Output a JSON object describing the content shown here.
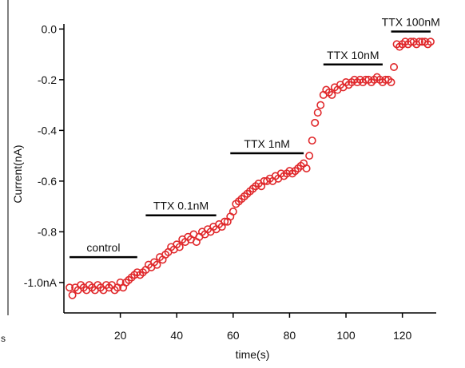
{
  "chart_data": {
    "type": "scatter",
    "title": "",
    "xlabel": "time(s)",
    "ylabel": "Current(nA)",
    "xlim": [
      0,
      132
    ],
    "ylim": [
      -1.12,
      0.02
    ],
    "x_ticks": [
      20,
      40,
      60,
      80,
      100,
      120
    ],
    "y_ticks": [
      {
        "value": 0.0,
        "label": "0.0"
      },
      {
        "value": -0.2,
        "label": "-0.2"
      },
      {
        "value": -0.4,
        "label": "-0.4"
      },
      {
        "value": -0.6,
        "label": "-0.6"
      },
      {
        "value": -0.8,
        "label": "-0.8"
      },
      {
        "value": -1.0,
        "label": "-1.0nA"
      }
    ],
    "grid": false,
    "marker_color": "#e0282b",
    "annotations": [
      {
        "label": "control",
        "x_start": 2,
        "x_end": 26,
        "y": -0.9
      },
      {
        "label": "TTX 0.1nM",
        "x_start": 29,
        "x_end": 54,
        "y": -0.735
      },
      {
        "label": "TTX 1nM",
        "x_start": 59,
        "x_end": 85,
        "y": -0.49
      },
      {
        "label": "TTX 10nM",
        "x_start": 92,
        "x_end": 113,
        "y": -0.14
      },
      {
        "label": "TTX 100nM",
        "x_start": 116,
        "x_end": 130,
        "y": -0.01
      }
    ],
    "stray_text": "s",
    "series": [
      {
        "x": [
          2,
          3,
          4,
          5,
          6,
          7,
          8,
          9,
          10,
          11,
          12,
          13,
          14,
          15,
          16,
          17,
          18,
          19,
          20,
          21,
          22,
          23,
          24,
          25,
          26,
          27,
          28,
          29,
          30,
          31,
          32,
          33,
          34,
          35,
          36,
          37,
          38,
          39,
          40,
          41,
          42,
          43,
          44,
          45,
          46,
          47,
          48,
          49,
          50,
          51,
          52,
          53,
          54,
          55,
          56,
          57,
          58,
          59,
          60,
          61,
          62,
          63,
          64,
          65,
          66,
          67,
          68,
          69,
          70,
          71,
          72,
          73,
          74,
          75,
          76,
          77,
          78,
          79,
          80,
          81,
          82,
          83,
          84,
          85,
          86,
          87,
          88,
          89,
          90,
          91,
          92,
          93,
          94,
          95,
          96,
          97,
          98,
          99,
          100,
          101,
          102,
          103,
          104,
          105,
          106,
          107,
          108,
          109,
          110,
          111,
          112,
          113,
          114,
          115,
          116,
          117,
          118,
          119,
          120,
          121,
          122,
          123,
          124,
          125,
          126,
          127,
          128,
          129,
          130
        ],
        "y": [
          -1.02,
          -1.05,
          -1.02,
          -1.03,
          -1.01,
          -1.02,
          -1.03,
          -1.01,
          -1.02,
          -1.03,
          -1.01,
          -1.02,
          -1.03,
          -1.01,
          -1.02,
          -1.01,
          -1.03,
          -1.02,
          -1.0,
          -1.02,
          -1.0,
          -0.99,
          -0.98,
          -0.97,
          -0.96,
          -0.97,
          -0.96,
          -0.95,
          -0.93,
          -0.94,
          -0.92,
          -0.93,
          -0.9,
          -0.91,
          -0.89,
          -0.88,
          -0.86,
          -0.87,
          -0.85,
          -0.86,
          -0.83,
          -0.84,
          -0.82,
          -0.83,
          -0.81,
          -0.84,
          -0.82,
          -0.8,
          -0.81,
          -0.79,
          -0.8,
          -0.78,
          -0.79,
          -0.77,
          -0.78,
          -0.76,
          -0.76,
          -0.74,
          -0.72,
          -0.69,
          -0.68,
          -0.67,
          -0.66,
          -0.65,
          -0.64,
          -0.63,
          -0.62,
          -0.61,
          -0.62,
          -0.6,
          -0.6,
          -0.59,
          -0.6,
          -0.58,
          -0.59,
          -0.57,
          -0.58,
          -0.57,
          -0.56,
          -0.57,
          -0.56,
          -0.55,
          -0.54,
          -0.53,
          -0.55,
          -0.5,
          -0.44,
          -0.37,
          -0.33,
          -0.3,
          -0.26,
          -0.24,
          -0.25,
          -0.26,
          -0.23,
          -0.24,
          -0.22,
          -0.23,
          -0.21,
          -0.22,
          -0.21,
          -0.2,
          -0.21,
          -0.2,
          -0.21,
          -0.2,
          -0.2,
          -0.21,
          -0.2,
          -0.19,
          -0.2,
          -0.21,
          -0.2,
          -0.2,
          -0.21,
          -0.15,
          -0.06,
          -0.07,
          -0.06,
          -0.05,
          -0.06,
          -0.05,
          -0.05,
          -0.06,
          -0.05,
          -0.05,
          -0.05,
          -0.06,
          -0.05
        ]
      }
    ]
  }
}
